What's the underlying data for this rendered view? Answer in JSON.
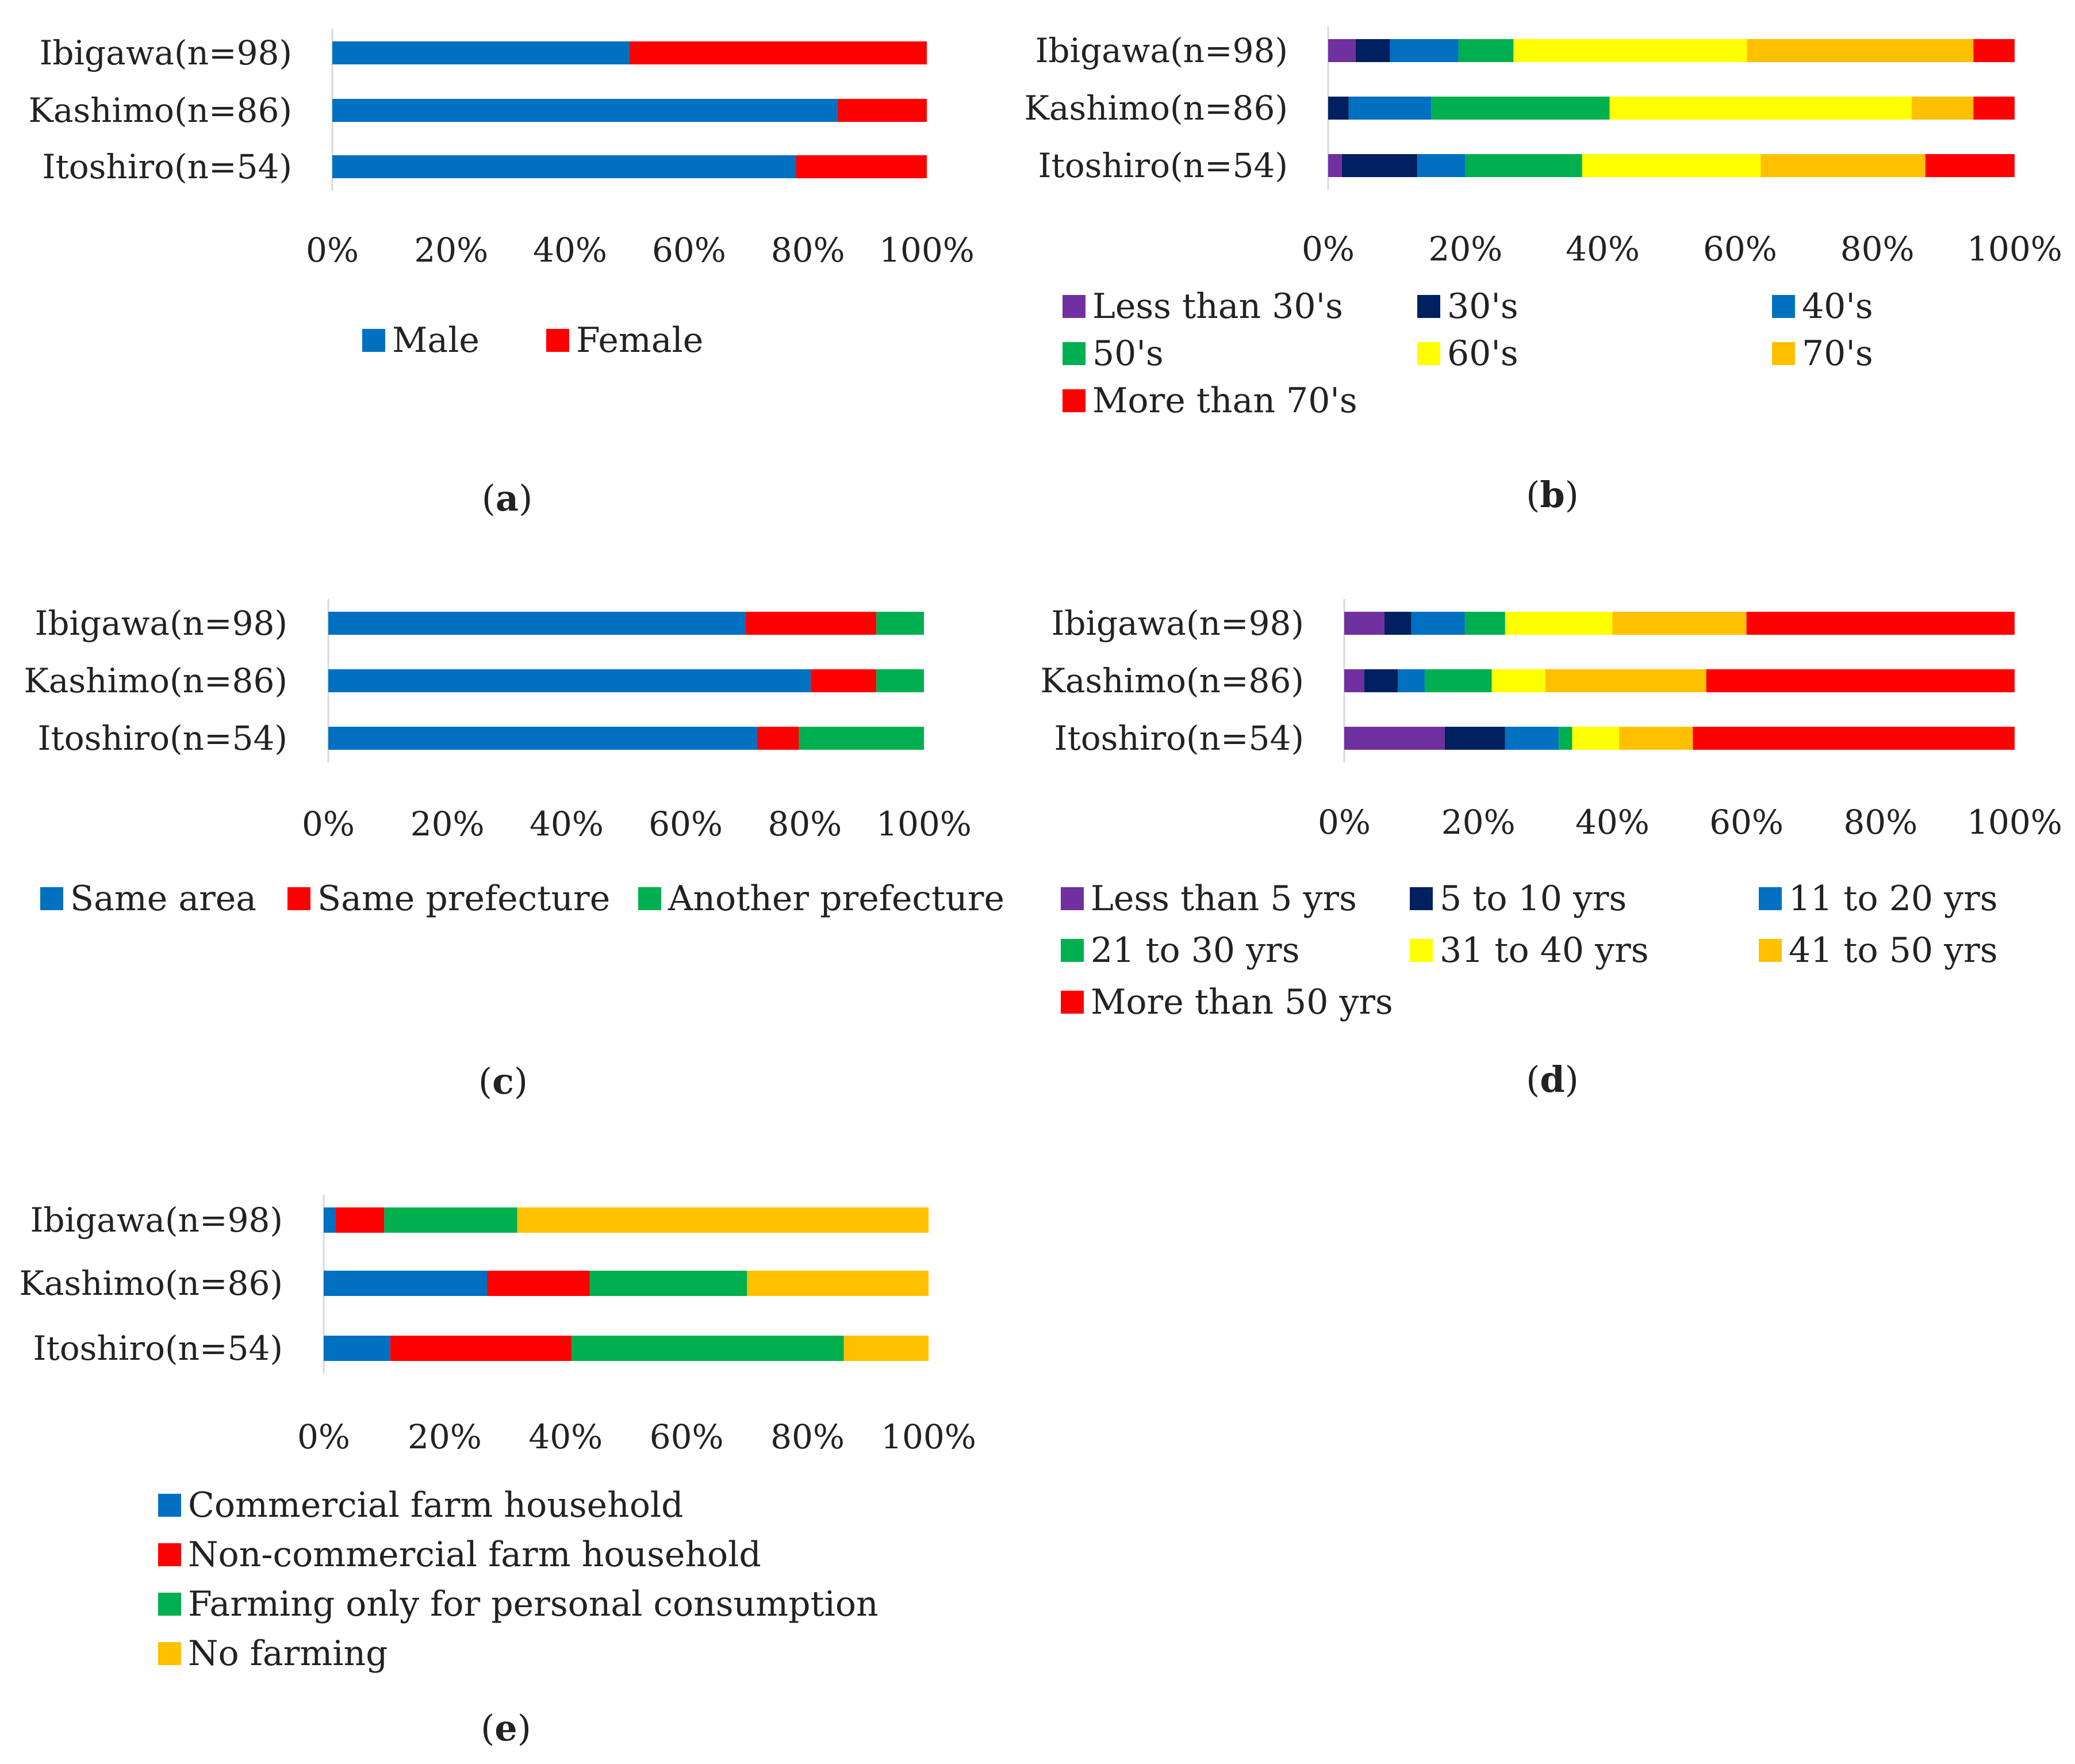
{
  "figure": {
    "colors": {
      "blue": "#0070c0",
      "red": "#ff0000",
      "green": "#00b050",
      "yellow": "#ffff00",
      "orange": "#ffc000",
      "purple": "#7030a0",
      "navy": "#002060"
    }
  },
  "chart_data": [
    {
      "id": "a",
      "caption": "a",
      "type": "bar",
      "stacked": "percent",
      "orientation": "horizontal",
      "categories": [
        "Ibigawa(n=98)",
        "Kashimo(n=86)",
        "Itoshiro(n=54)"
      ],
      "xticks": [
        "0%",
        "20%",
        "40%",
        "60%",
        "80%",
        "100%"
      ],
      "xlim": [
        0,
        100
      ],
      "legend_columns": 2,
      "series": [
        {
          "name": "Male",
          "color": "#0070c0",
          "values": [
            50,
            85,
            78
          ]
        },
        {
          "name": "Female",
          "color": "#ff0000",
          "values": [
            50,
            15,
            22
          ]
        }
      ]
    },
    {
      "id": "b",
      "caption": "b",
      "type": "bar",
      "stacked": "percent",
      "orientation": "horizontal",
      "categories": [
        "Ibigawa(n=98)",
        "Kashimo(n=86)",
        "Itoshiro(n=54)"
      ],
      "xticks": [
        "0%",
        "20%",
        "40%",
        "60%",
        "80%",
        "100%"
      ],
      "xlim": [
        0,
        100
      ],
      "legend_columns": 3,
      "series": [
        {
          "name": "Less than 30's",
          "color": "#7030a0",
          "values": [
            4,
            0,
            2
          ]
        },
        {
          "name": "30's",
          "color": "#002060",
          "values": [
            5,
            3,
            11
          ]
        },
        {
          "name": "40's",
          "color": "#0070c0",
          "values": [
            10,
            12,
            7
          ]
        },
        {
          "name": "50's",
          "color": "#00b050",
          "values": [
            8,
            26,
            17
          ]
        },
        {
          "name": "60's",
          "color": "#ffff00",
          "values": [
            34,
            44,
            26
          ]
        },
        {
          "name": "70's",
          "color": "#ffc000",
          "values": [
            33,
            9,
            24
          ]
        },
        {
          "name": "More than 70's",
          "color": "#ff0000",
          "values": [
            6,
            6,
            13
          ]
        }
      ]
    },
    {
      "id": "c",
      "caption": "c",
      "type": "bar",
      "stacked": "percent",
      "orientation": "horizontal",
      "categories": [
        "Ibigawa(n=98)",
        "Kashimo(n=86)",
        "Itoshiro(n=54)"
      ],
      "xticks": [
        "0%",
        "20%",
        "40%",
        "60%",
        "80%",
        "100%"
      ],
      "xlim": [
        0,
        100
      ],
      "legend_columns": 3,
      "series": [
        {
          "name": "Same area",
          "color": "#0070c0",
          "values": [
            70,
            81,
            72
          ]
        },
        {
          "name": "Same prefecture",
          "color": "#ff0000",
          "values": [
            22,
            11,
            7
          ]
        },
        {
          "name": "Another prefecture",
          "color": "#00b050",
          "values": [
            8,
            8,
            21
          ]
        }
      ]
    },
    {
      "id": "d",
      "caption": "d",
      "type": "bar",
      "stacked": "percent",
      "orientation": "horizontal",
      "categories": [
        "Ibigawa(n=98)",
        "Kashimo(n=86)",
        "Itoshiro(n=54)"
      ],
      "xticks": [
        "0%",
        "20%",
        "40%",
        "60%",
        "80%",
        "100%"
      ],
      "xlim": [
        0,
        100
      ],
      "legend_columns": 3,
      "series": [
        {
          "name": "Less than 5 yrs",
          "color": "#7030a0",
          "values": [
            6,
            3,
            15
          ]
        },
        {
          "name": "5 to 10 yrs",
          "color": "#002060",
          "values": [
            4,
            5,
            9
          ]
        },
        {
          "name": "11 to 20 yrs",
          "color": "#0070c0",
          "values": [
            8,
            4,
            8
          ]
        },
        {
          "name": "21 to 30 yrs",
          "color": "#00b050",
          "values": [
            6,
            10,
            2
          ]
        },
        {
          "name": "31 to 40 yrs",
          "color": "#ffff00",
          "values": [
            16,
            8,
            7
          ]
        },
        {
          "name": "41 to 50 yrs",
          "color": "#ffc000",
          "values": [
            20,
            24,
            11
          ]
        },
        {
          "name": "More than 50 yrs",
          "color": "#ff0000",
          "values": [
            40,
            46,
            48
          ]
        }
      ]
    },
    {
      "id": "e",
      "caption": "e",
      "type": "bar",
      "stacked": "percent",
      "orientation": "horizontal",
      "categories": [
        "Ibigawa(n=98)",
        "Kashimo(n=86)",
        "Itoshiro(n=54)"
      ],
      "xticks": [
        "0%",
        "20%",
        "40%",
        "60%",
        "80%",
        "100%"
      ],
      "xlim": [
        0,
        100
      ],
      "legend_columns": 1,
      "series": [
        {
          "name": "Commercial farm household",
          "color": "#0070c0",
          "values": [
            2,
            27,
            11
          ]
        },
        {
          "name": "Non-commercial farm household",
          "color": "#ff0000",
          "values": [
            8,
            17,
            30
          ]
        },
        {
          "name": "Farming only for personal consumption",
          "color": "#00b050",
          "values": [
            22,
            26,
            45
          ]
        },
        {
          "name": "No farming",
          "color": "#ffc000",
          "values": [
            68,
            30,
            14
          ]
        }
      ]
    }
  ]
}
